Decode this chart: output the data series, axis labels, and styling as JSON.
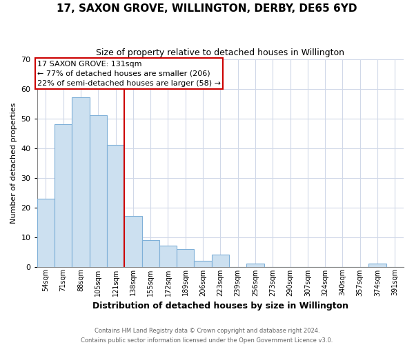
{
  "title": "17, SAXON GROVE, WILLINGTON, DERBY, DE65 6YD",
  "subtitle": "Size of property relative to detached houses in Willington",
  "xlabel": "Distribution of detached houses by size in Willington",
  "ylabel": "Number of detached properties",
  "bar_labels": [
    "54sqm",
    "71sqm",
    "88sqm",
    "105sqm",
    "121sqm",
    "138sqm",
    "155sqm",
    "172sqm",
    "189sqm",
    "206sqm",
    "223sqm",
    "239sqm",
    "256sqm",
    "273sqm",
    "290sqm",
    "307sqm",
    "324sqm",
    "340sqm",
    "357sqm",
    "374sqm",
    "391sqm"
  ],
  "bar_values": [
    23,
    48,
    57,
    51,
    41,
    17,
    9,
    7,
    6,
    2,
    4,
    0,
    1,
    0,
    0,
    0,
    0,
    0,
    0,
    1,
    0
  ],
  "bar_color": "#cce0f0",
  "bar_edge_color": "#7fb0d8",
  "vline_x_index": 4.5,
  "ylim": [
    0,
    70
  ],
  "yticks": [
    0,
    10,
    20,
    30,
    40,
    50,
    60,
    70
  ],
  "annotation_title": "17 SAXON GROVE: 131sqm",
  "annotation_line1": "← 77% of detached houses are smaller (206)",
  "annotation_line2": "22% of semi-detached houses are larger (58) →",
  "annotation_box_color": "#ffffff",
  "annotation_box_edge": "#cc0000",
  "vline_color": "#cc0000",
  "grid_color": "#d0d8e8",
  "footnote1": "Contains HM Land Registry data © Crown copyright and database right 2024.",
  "footnote2": "Contains public sector information licensed under the Open Government Licence v3.0."
}
